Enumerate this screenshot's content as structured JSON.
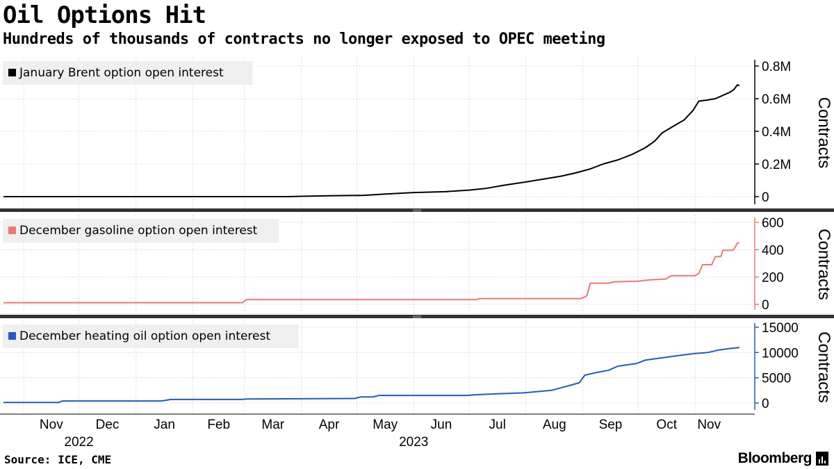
{
  "header": {
    "title": "Oil Options Hit",
    "subtitle": "Hundreds of thousands of contracts no longer exposed to OPEC meeting"
  },
  "footer": {
    "source": "Source: ICE, CME",
    "brand": "Bloomberg"
  },
  "chart_data": [
    {
      "type": "line",
      "legend": "January Brent option open interest",
      "color": "#000000",
      "ylabel": "Contracts",
      "ylim": [
        0,
        800000
      ],
      "yticks": [
        0,
        200000,
        400000,
        600000,
        800000
      ],
      "ytick_labels": [
        "0",
        "0.2M",
        "0.4M",
        "0.6M",
        "0.8M"
      ],
      "points": [
        [
          "2022-10-21",
          0
        ],
        [
          "2023-03-25",
          0
        ],
        [
          "2023-04-01",
          2000
        ],
        [
          "2023-04-16",
          5000
        ],
        [
          "2023-05-05",
          8000
        ],
        [
          "2023-05-15",
          15000
        ],
        [
          "2023-06-01",
          25000
        ],
        [
          "2023-06-18",
          30000
        ],
        [
          "2023-07-01",
          40000
        ],
        [
          "2023-07-10",
          50000
        ],
        [
          "2023-07-20",
          70000
        ],
        [
          "2023-08-01",
          90000
        ],
        [
          "2023-08-12",
          110000
        ],
        [
          "2023-08-20",
          125000
        ],
        [
          "2023-08-28",
          145000
        ],
        [
          "2023-09-05",
          170000
        ],
        [
          "2023-09-12",
          200000
        ],
        [
          "2023-09-20",
          225000
        ],
        [
          "2023-09-28",
          260000
        ],
        [
          "2023-10-05",
          300000
        ],
        [
          "2023-10-10",
          340000
        ],
        [
          "2023-10-14",
          390000
        ],
        [
          "2023-10-20",
          430000
        ],
        [
          "2023-10-26",
          470000
        ],
        [
          "2023-10-31",
          530000
        ],
        [
          "2023-11-03",
          585000
        ],
        [
          "2023-11-07",
          590000
        ],
        [
          "2023-11-12",
          600000
        ],
        [
          "2023-11-16",
          620000
        ],
        [
          "2023-11-20",
          640000
        ],
        [
          "2023-11-22",
          655000
        ],
        [
          "2023-11-24",
          685000
        ],
        [
          "2023-11-25",
          680000
        ]
      ]
    },
    {
      "type": "line",
      "legend": "December gasoline option open interest",
      "color": "#f07873",
      "ylabel": "Contracts",
      "ylim": [
        0,
        600
      ],
      "yticks": [
        0,
        200,
        400,
        600
      ],
      "ytick_labels": [
        "0",
        "200",
        "400",
        "600"
      ],
      "points": [
        [
          "2022-10-21",
          12
        ],
        [
          "2023-02-28",
          12
        ],
        [
          "2023-03-02",
          35
        ],
        [
          "2023-07-05",
          35
        ],
        [
          "2023-07-07",
          42
        ],
        [
          "2023-08-31",
          42
        ],
        [
          "2023-09-03",
          60
        ],
        [
          "2023-09-05",
          155
        ],
        [
          "2023-09-15",
          155
        ],
        [
          "2023-09-18",
          165
        ],
        [
          "2023-10-01",
          170
        ],
        [
          "2023-10-08",
          180
        ],
        [
          "2023-10-16",
          185
        ],
        [
          "2023-10-19",
          210
        ],
        [
          "2023-11-01",
          210
        ],
        [
          "2023-11-03",
          225
        ],
        [
          "2023-11-05",
          290
        ],
        [
          "2023-11-10",
          290
        ],
        [
          "2023-11-12",
          350
        ],
        [
          "2023-11-15",
          350
        ],
        [
          "2023-11-16",
          395
        ],
        [
          "2023-11-21",
          395
        ],
        [
          "2023-11-22",
          400
        ],
        [
          "2023-11-24",
          450
        ],
        [
          "2023-11-25",
          450
        ]
      ]
    },
    {
      "type": "line",
      "legend": "December heating oil option open interest",
      "color": "#2358c8",
      "ylabel": "Contracts",
      "ylim": [
        0,
        15000
      ],
      "yticks": [
        0,
        5000,
        10000,
        15000
      ],
      "ytick_labels": [
        "0",
        "5000",
        "10000",
        "15000"
      ],
      "points": [
        [
          "2022-10-21",
          100
        ],
        [
          "2022-11-20",
          100
        ],
        [
          "2022-11-22",
          400
        ],
        [
          "2023-01-15",
          400
        ],
        [
          "2023-01-20",
          700
        ],
        [
          "2023-02-28",
          700
        ],
        [
          "2023-03-02",
          800
        ],
        [
          "2023-04-30",
          900
        ],
        [
          "2023-05-03",
          1200
        ],
        [
          "2023-05-10",
          1200
        ],
        [
          "2023-05-13",
          1500
        ],
        [
          "2023-06-30",
          1500
        ],
        [
          "2023-07-03",
          1600
        ],
        [
          "2023-07-15",
          1800
        ],
        [
          "2023-07-30",
          2000
        ],
        [
          "2023-08-15",
          2500
        ],
        [
          "2023-08-20",
          3000
        ],
        [
          "2023-08-25",
          3500
        ],
        [
          "2023-08-30",
          4000
        ],
        [
          "2023-09-02",
          5500
        ],
        [
          "2023-09-08",
          6000
        ],
        [
          "2023-09-15",
          6500
        ],
        [
          "2023-09-20",
          7300
        ],
        [
          "2023-09-30",
          7800
        ],
        [
          "2023-10-05",
          8500
        ],
        [
          "2023-10-15",
          9000
        ],
        [
          "2023-10-25",
          9500
        ],
        [
          "2023-11-01",
          9800
        ],
        [
          "2023-11-08",
          10000
        ],
        [
          "2023-11-14",
          10500
        ],
        [
          "2023-11-20",
          10800
        ],
        [
          "2023-11-25",
          11000
        ]
      ]
    }
  ],
  "x_axis": {
    "range": [
      "2022-10-21",
      "2023-11-30"
    ],
    "month_labels": [
      {
        "date": "2022-11-01",
        "label": "Nov"
      },
      {
        "date": "2022-12-01",
        "label": "Dec"
      },
      {
        "date": "2023-01-01",
        "label": "Jan"
      },
      {
        "date": "2023-02-01",
        "label": "Feb"
      },
      {
        "date": "2023-03-01",
        "label": "Mar"
      },
      {
        "date": "2023-04-01",
        "label": "Apr"
      },
      {
        "date": "2023-05-01",
        "label": "May"
      },
      {
        "date": "2023-06-01",
        "label": "Jun"
      },
      {
        "date": "2023-07-01",
        "label": "Jul"
      },
      {
        "date": "2023-08-01",
        "label": "Aug"
      },
      {
        "date": "2023-09-01",
        "label": "Sep"
      },
      {
        "date": "2023-10-01",
        "label": "Oct"
      },
      {
        "date": "2023-11-01",
        "label": "Nov"
      }
    ],
    "year_labels": [
      {
        "date": "2022-12-01",
        "label": "2022"
      },
      {
        "date": "2023-06-01",
        "label": "2023"
      }
    ]
  }
}
